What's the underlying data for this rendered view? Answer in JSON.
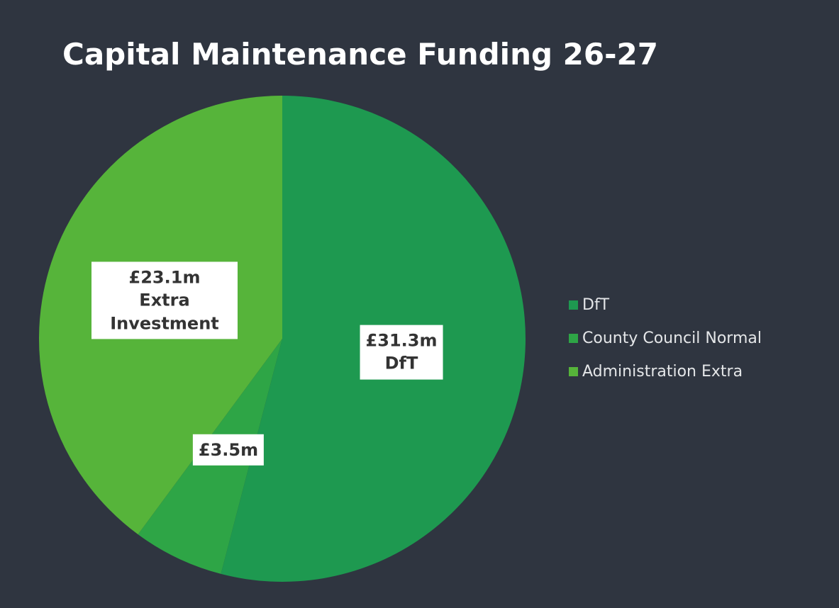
{
  "chart_data": {
    "type": "pie",
    "title": "Capital Maintenance Funding 26-27",
    "categories": [
      "DfT",
      "County Council Normal",
      "Administration Extra"
    ],
    "values": [
      31.3,
      3.5,
      23.1
    ],
    "value_labels": [
      "£31.3m",
      "£3.5m",
      "£23.1m"
    ],
    "label_notes": [
      "DfT",
      null,
      "Extra Investment"
    ],
    "colors": [
      "#1e9950",
      "#2ea546",
      "#56b43a"
    ],
    "legend": "right"
  }
}
